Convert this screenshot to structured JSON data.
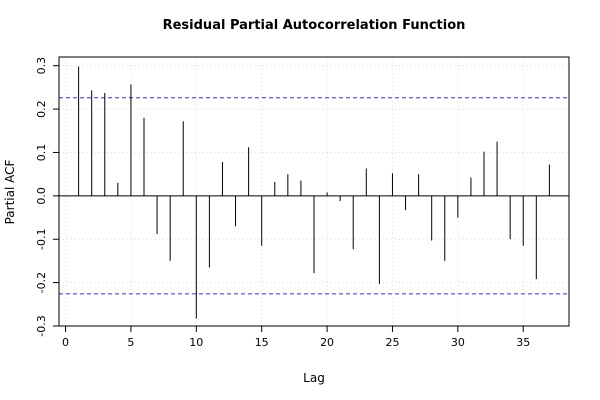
{
  "chart_data": {
    "type": "bar",
    "title": "Residual Partial Autocorrelation Function",
    "xlabel": "Lag",
    "ylabel": "Partial ACF",
    "xlim": [
      -0.5,
      38.5
    ],
    "ylim": [
      -0.3,
      0.32
    ],
    "xticks": [
      0,
      5,
      10,
      15,
      20,
      25,
      30,
      35
    ],
    "yticks": [
      -0.3,
      -0.2,
      -0.1,
      0.0,
      0.1,
      0.2,
      0.3
    ],
    "xtick_labels": [
      "0",
      "5",
      "10",
      "15",
      "20",
      "25",
      "30",
      "35"
    ],
    "ytick_labels": [
      "-0.3",
      "-0.2",
      "-0.1",
      "0.0",
      "0.1",
      "0.2",
      "0.3"
    ],
    "grid": true,
    "confidence_bounds": [
      0.226,
      -0.226
    ],
    "confidence_color": "#3333cc",
    "lags": [
      1,
      2,
      3,
      4,
      5,
      6,
      7,
      8,
      9,
      10,
      11,
      12,
      13,
      14,
      15,
      16,
      17,
      18,
      19,
      20,
      21,
      22,
      23,
      24,
      25,
      26,
      27,
      28,
      29,
      30,
      31,
      32,
      33,
      34,
      35,
      36,
      37
    ],
    "values": [
      0.298,
      0.243,
      0.237,
      0.03,
      0.257,
      0.18,
      -0.088,
      -0.15,
      0.172,
      -0.283,
      -0.165,
      0.078,
      -0.07,
      0.112,
      -0.115,
      0.032,
      0.05,
      0.035,
      -0.178,
      0.008,
      -0.012,
      -0.123,
      0.063,
      -0.203,
      0.052,
      -0.033,
      0.05,
      -0.103,
      -0.15,
      -0.05,
      0.042,
      0.102,
      0.125,
      -0.1,
      -0.115,
      -0.192,
      0.072
    ]
  }
}
